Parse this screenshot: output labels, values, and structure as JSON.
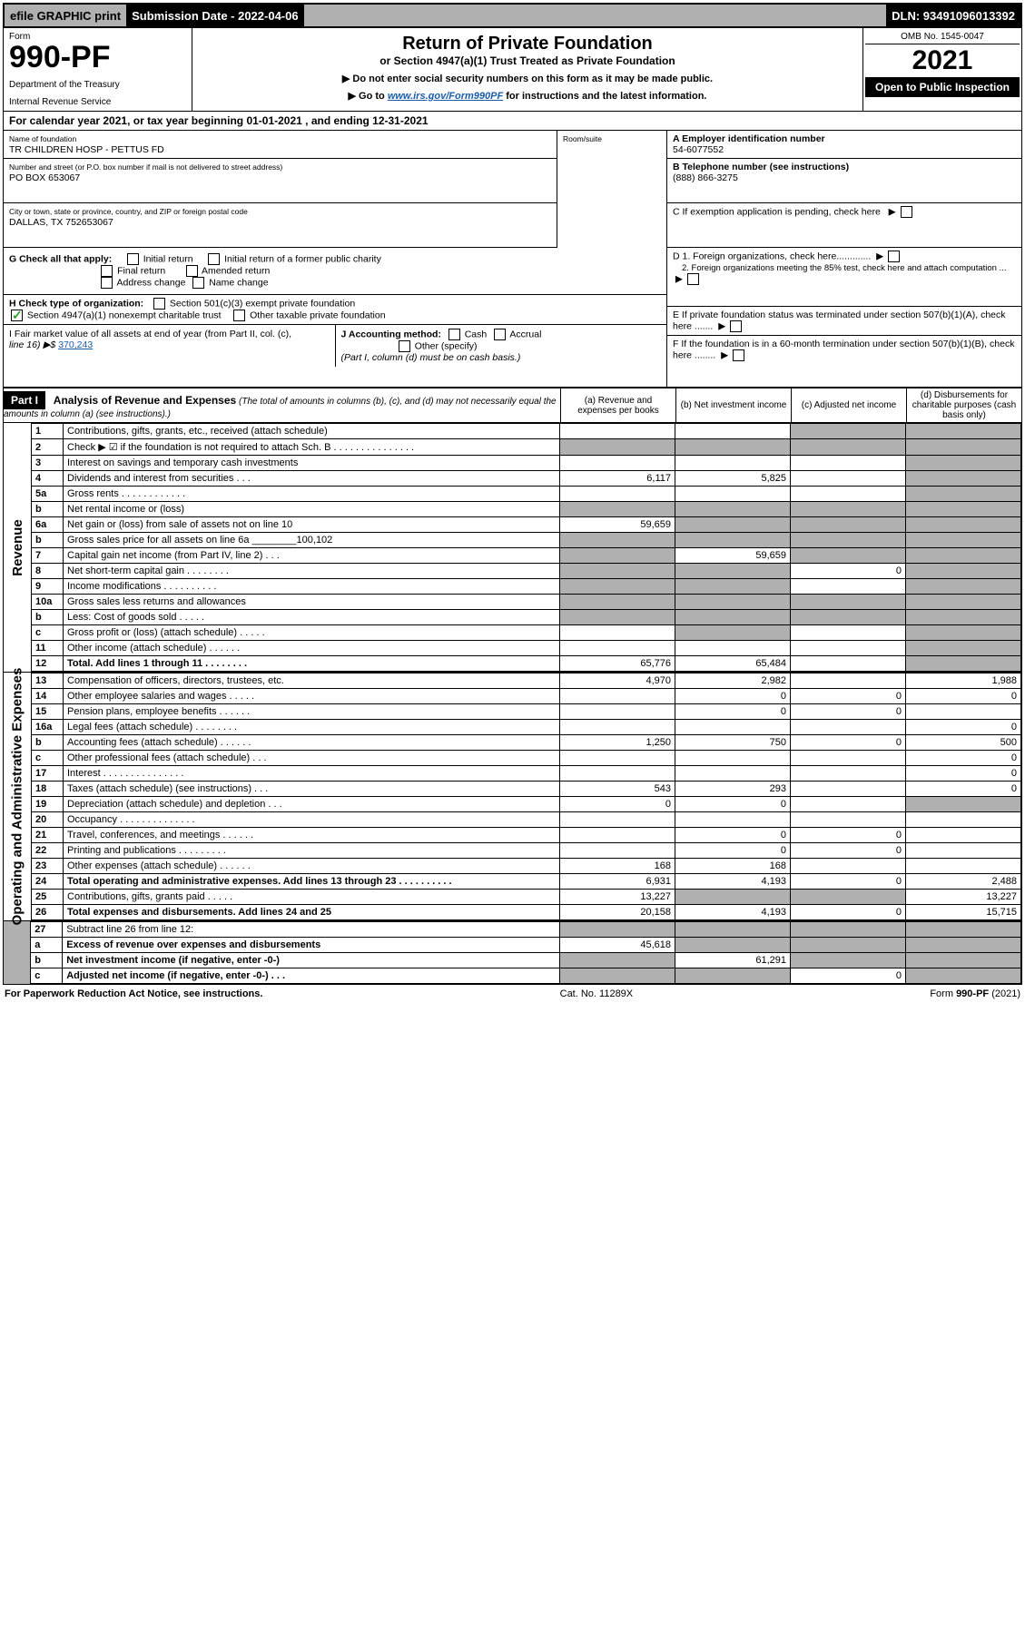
{
  "topbar": {
    "efile": "efile GRAPHIC print",
    "subdate_label": "Submission Date - 2022-04-06",
    "dln": "DLN: 93491096013392"
  },
  "header": {
    "form_label": "Form",
    "form_no": "990-PF",
    "dept": "Department of the Treasury",
    "irs": "Internal Revenue Service",
    "title": "Return of Private Foundation",
    "subtitle": "or Section 4947(a)(1) Trust Treated as Private Foundation",
    "inst1": "▶ Do not enter social security numbers on this form as it may be made public.",
    "inst2_pre": "▶ Go to ",
    "inst2_link": "www.irs.gov/Form990PF",
    "inst2_post": " for instructions and the latest information.",
    "omb": "OMB No. 1545-0047",
    "year": "2021",
    "open": "Open to Public Inspection"
  },
  "cal": "For calendar year 2021, or tax year beginning 01-01-2021                                          , and ending 12-31-2021",
  "info": {
    "name_label": "Name of foundation",
    "name": "TR CHILDREN HOSP - PETTUS FD",
    "addr_label": "Number and street (or P.O. box number if mail is not delivered to street address)",
    "addr": "PO BOX 653067",
    "room_label": "Room/suite",
    "city_label": "City or town, state or province, country, and ZIP or foreign postal code",
    "city": "DALLAS, TX  752653067",
    "a_label": "A Employer identification number",
    "a": "54-6077552",
    "b_label": "B Telephone number (see instructions)",
    "b": "(888) 866-3275",
    "c_label": "C If exemption application is pending, check here",
    "g_label": "G Check all that apply:",
    "g_opts": [
      "Initial return",
      "Initial return of a former public charity",
      "Final return",
      "Amended return",
      "Address change",
      "Name change"
    ],
    "d1": "D 1. Foreign organizations, check here.............",
    "d2": "2. Foreign organizations meeting the 85% test, check here and attach computation ...",
    "h_label": "H Check type of organization:",
    "h1": "Section 501(c)(3) exempt private foundation",
    "h2": "Section 4947(a)(1) nonexempt charitable trust",
    "h3": "Other taxable private foundation",
    "e": "E If private foundation status was terminated under section 507(b)(1)(A), check here .......",
    "i_label": "I Fair market value of all assets at end of year (from Part II, col. (c),",
    "i_line16": "line 16) ▶$",
    "i_amt": "370,243",
    "j_label": "J Accounting method:",
    "j_cash": "Cash",
    "j_accrual": "Accrual",
    "j_other": "Other (specify)",
    "j_note": "(Part I, column (d) must be on cash basis.)",
    "f": "F If the foundation is in a 60-month termination under section 507(b)(1)(B), check here ........"
  },
  "part1": {
    "label": "Part I",
    "title": "Analysis of Revenue and Expenses",
    "title_note": "(The total of amounts in columns (b), (c), and (d) may not necessarily equal the amounts in column (a) (see instructions).)",
    "cols": {
      "a": "(a)  Revenue and expenses per books",
      "b": "(b)  Net investment income",
      "c": "(c)  Adjusted net income",
      "d": "(d)  Disbursements for charitable purposes (cash basis only)"
    }
  },
  "rev_label": "Revenue",
  "exp_label": "Operating and Administrative Expenses",
  "rows": [
    {
      "n": "1",
      "d": "Contributions, gifts, grants, etc., received (attach schedule)",
      "a": "",
      "b": "",
      "c": "g",
      "dd": "g"
    },
    {
      "n": "2",
      "d": "Check ▶ ☑ if the foundation is not required to attach Sch. B     .   .   .   .   .   .   .   .   .   .   .   .   .   .   .",
      "a": "g",
      "b": "g",
      "c": "g",
      "dd": "g"
    },
    {
      "n": "3",
      "d": "Interest on savings and temporary cash investments",
      "a": "",
      "b": "",
      "c": "",
      "dd": "g"
    },
    {
      "n": "4",
      "d": "Dividends and interest from securities     .   .   .",
      "a": "6,117",
      "b": "5,825",
      "c": "",
      "dd": "g"
    },
    {
      "n": "5a",
      "d": "Gross rents       .   .   .   .   .   .   .   .   .   .   .   .",
      "a": "",
      "b": "",
      "c": "",
      "dd": "g"
    },
    {
      "n": "b",
      "d": "Net rental income or (loss)",
      "a": "g",
      "b": "g",
      "c": "g",
      "dd": "g"
    },
    {
      "n": "6a",
      "d": "Net gain or (loss) from sale of assets not on line 10",
      "a": "59,659",
      "b": "g",
      "c": "g",
      "dd": "g"
    },
    {
      "n": "b",
      "d": "Gross sales price for all assets on line 6a ________100,102",
      "a": "g",
      "b": "g",
      "c": "g",
      "dd": "g"
    },
    {
      "n": "7",
      "d": "Capital gain net income (from Part IV, line 2)   .   .   .",
      "a": "g",
      "b": "59,659",
      "c": "g",
      "dd": "g"
    },
    {
      "n": "8",
      "d": "Net short-term capital gain   .   .   .   .   .   .   .   .",
      "a": "g",
      "b": "g",
      "c": "0",
      "dd": "g"
    },
    {
      "n": "9",
      "d": "Income modifications  .   .   .   .   .   .   .   .   .   .",
      "a": "g",
      "b": "g",
      "c": "",
      "dd": "g"
    },
    {
      "n": "10a",
      "d": "Gross sales less returns and allowances",
      "a": "g",
      "b": "g",
      "c": "g",
      "dd": "g"
    },
    {
      "n": "b",
      "d": "Less: Cost of goods sold     .   .   .   .   .",
      "a": "g",
      "b": "g",
      "c": "g",
      "dd": "g"
    },
    {
      "n": "c",
      "d": "Gross profit or (loss) (attach schedule)       .   .   .   .   .",
      "a": "",
      "b": "g",
      "c": "",
      "dd": "g"
    },
    {
      "n": "11",
      "d": "Other income (attach schedule)     .   .   .   .   .   .",
      "a": "",
      "b": "",
      "c": "",
      "dd": "g"
    },
    {
      "n": "12",
      "d": "Total. Add lines 1 through 11   .   .   .   .   .   .   .   .",
      "a": "65,776",
      "b": "65,484",
      "c": "",
      "dd": "g",
      "bold": true
    }
  ],
  "erows": [
    {
      "n": "13",
      "d": "Compensation of officers, directors, trustees, etc.",
      "a": "4,970",
      "b": "2,982",
      "c": "",
      "dd": "1,988"
    },
    {
      "n": "14",
      "d": "Other employee salaries and wages     .   .   .   .   .",
      "a": "",
      "b": "0",
      "c": "0",
      "dd": "0"
    },
    {
      "n": "15",
      "d": "Pension plans, employee benefits  .   .   .   .   .   .",
      "a": "",
      "b": "0",
      "c": "0",
      "dd": ""
    },
    {
      "n": "16a",
      "d": "Legal fees (attach schedule)  .   .   .   .   .   .   .   .",
      "a": "",
      "b": "",
      "c": "",
      "dd": "0"
    },
    {
      "n": "b",
      "d": "Accounting fees (attach schedule)  .   .   .   .   .   .",
      "a": "1,250",
      "b": "750",
      "c": "0",
      "dd": "500"
    },
    {
      "n": "c",
      "d": "Other professional fees (attach schedule)     .   .   .",
      "a": "",
      "b": "",
      "c": "",
      "dd": "0"
    },
    {
      "n": "17",
      "d": "Interest  .   .   .   .   .   .   .   .   .   .   .   .   .   .   .",
      "a": "",
      "b": "",
      "c": "",
      "dd": "0"
    },
    {
      "n": "18",
      "d": "Taxes (attach schedule) (see instructions)       .   .   .",
      "a": "543",
      "b": "293",
      "c": "",
      "dd": "0"
    },
    {
      "n": "19",
      "d": "Depreciation (attach schedule) and depletion    .   .   .",
      "a": "0",
      "b": "0",
      "c": "",
      "dd": "g"
    },
    {
      "n": "20",
      "d": "Occupancy  .   .   .   .   .   .   .   .   .   .   .   .   .   .",
      "a": "",
      "b": "",
      "c": "",
      "dd": ""
    },
    {
      "n": "21",
      "d": "Travel, conferences, and meetings  .   .   .   .   .   .",
      "a": "",
      "b": "0",
      "c": "0",
      "dd": ""
    },
    {
      "n": "22",
      "d": "Printing and publications  .   .   .   .   .   .   .   .   .",
      "a": "",
      "b": "0",
      "c": "0",
      "dd": ""
    },
    {
      "n": "23",
      "d": "Other expenses (attach schedule)  .   .   .   .   .   .",
      "a": "168",
      "b": "168",
      "c": "",
      "dd": ""
    },
    {
      "n": "24",
      "d": "Total operating and administrative expenses. Add lines 13 through 23   .   .   .   .   .   .   .   .   .   .",
      "a": "6,931",
      "b": "4,193",
      "c": "0",
      "dd": "2,488",
      "bold": true
    },
    {
      "n": "25",
      "d": "Contributions, gifts, grants paid     .   .   .   .   .",
      "a": "13,227",
      "b": "g",
      "c": "g",
      "dd": "13,227"
    },
    {
      "n": "26",
      "d": "Total expenses and disbursements. Add lines 24 and 25",
      "a": "20,158",
      "b": "4,193",
      "c": "0",
      "dd": "15,715",
      "bold": true
    }
  ],
  "botrows": [
    {
      "n": "27",
      "d": "Subtract line 26 from line 12:",
      "a": "g",
      "b": "g",
      "c": "g",
      "dd": "g"
    },
    {
      "n": "a",
      "d": "Excess of revenue over expenses and disbursements",
      "a": "45,618",
      "b": "g",
      "c": "g",
      "dd": "g",
      "bold": true
    },
    {
      "n": "b",
      "d": "Net investment income (if negative, enter -0-)",
      "a": "g",
      "b": "61,291",
      "c": "g",
      "dd": "g",
      "bold": true
    },
    {
      "n": "c",
      "d": "Adjusted net income (if negative, enter -0-)    .   .   .",
      "a": "g",
      "b": "g",
      "c": "0",
      "dd": "g",
      "bold": true
    }
  ],
  "footer": {
    "left": "For Paperwork Reduction Act Notice, see instructions.",
    "mid": "Cat. No. 11289X",
    "right": "Form 990-PF (2021)"
  }
}
